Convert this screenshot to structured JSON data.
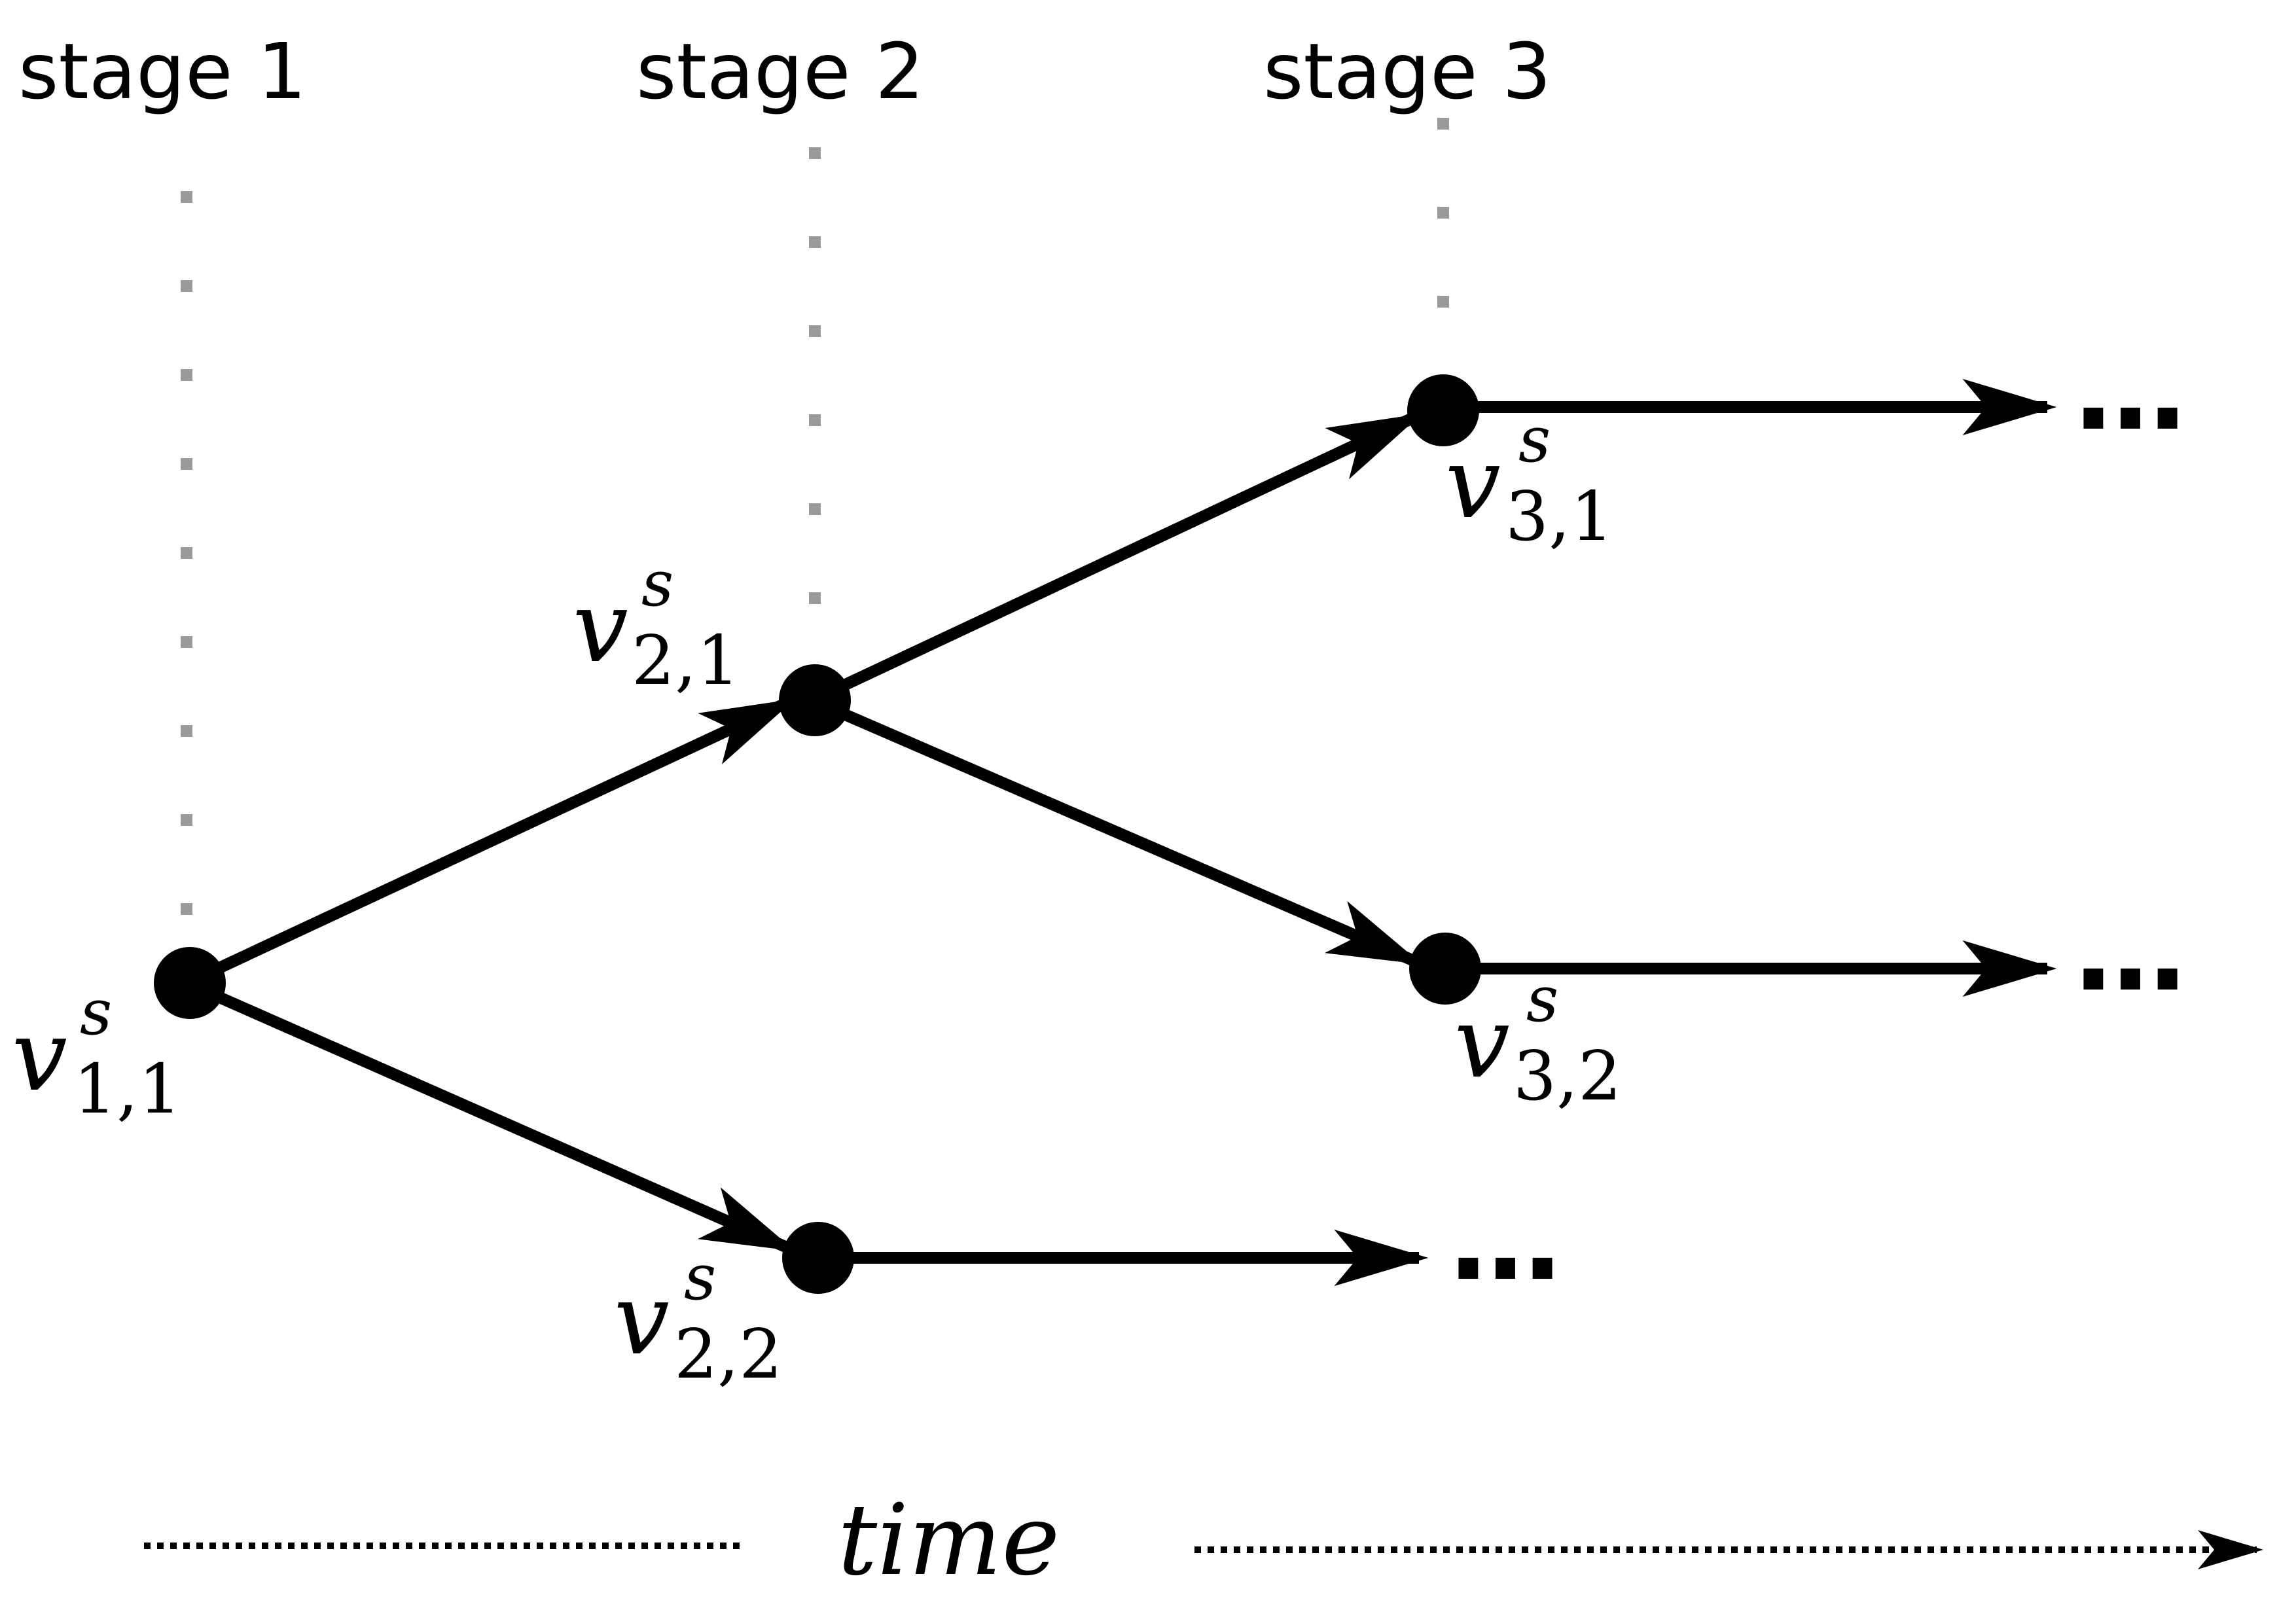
{
  "stages": [
    {
      "label": "stage 1"
    },
    {
      "label": "stage 2"
    },
    {
      "label": "stage 3"
    }
  ],
  "nodes": [
    {
      "id": "v11",
      "symbol": "v",
      "superscript": "s",
      "subscript": "1,1"
    },
    {
      "id": "v21",
      "symbol": "v",
      "superscript": "s",
      "subscript": "2,1"
    },
    {
      "id": "v22",
      "symbol": "v",
      "superscript": "s",
      "subscript": "2,2"
    },
    {
      "id": "v31",
      "symbol": "v",
      "superscript": "s",
      "subscript": "3,1"
    },
    {
      "id": "v32",
      "symbol": "v",
      "superscript": "s",
      "subscript": "3,2"
    }
  ],
  "edges": [
    {
      "from": "v11",
      "to": "v21"
    },
    {
      "from": "v11",
      "to": "v22"
    },
    {
      "from": "v21",
      "to": "v31"
    },
    {
      "from": "v21",
      "to": "v32"
    }
  ],
  "continuations": [
    {
      "from": "v31",
      "text": "…"
    },
    {
      "from": "v32",
      "text": "…"
    },
    {
      "from": "v22",
      "text": "…"
    }
  ],
  "time_axis": {
    "label": "time"
  },
  "colors": {
    "ink": "#000000",
    "guide": "#9a9a9a",
    "background": "#ffffff"
  }
}
